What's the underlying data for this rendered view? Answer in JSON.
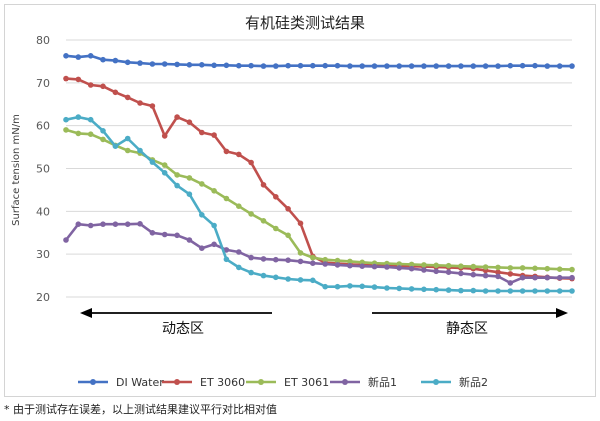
{
  "chart_data": {
    "type": "line",
    "title": "有机硅类测试结果",
    "xlabel": "",
    "ylabel": "Surface tension mN/m",
    "ylim": [
      20,
      80
    ],
    "yticks": [
      20,
      30,
      40,
      50,
      60,
      70,
      80
    ],
    "grid": true,
    "legend_position": "bottom",
    "x": [
      1,
      2,
      3,
      4,
      5,
      6,
      7,
      8,
      9,
      10,
      11,
      12,
      13,
      14,
      15,
      16,
      17,
      18,
      19,
      20,
      21,
      22,
      23,
      24,
      25,
      26,
      27,
      28,
      29,
      30,
      31,
      32,
      33,
      34,
      35,
      36,
      37,
      38,
      39,
      40,
      41,
      42
    ],
    "series": [
      {
        "name": "DI Water",
        "color": "#4472C4",
        "values": [
          76.3,
          76.0,
          76.3,
          75.4,
          75.2,
          74.8,
          74.6,
          74.4,
          74.4,
          74.3,
          74.2,
          74.2,
          74.1,
          74.1,
          74.0,
          74.0,
          73.9,
          73.9,
          74.0,
          74.0,
          74.0,
          74.0,
          74.0,
          73.9,
          73.9,
          73.9,
          73.9,
          73.9,
          73.9,
          73.9,
          73.9,
          73.9,
          73.9,
          73.9,
          73.9,
          73.9,
          74.0,
          74.0,
          74.0,
          73.9,
          73.9,
          73.9
        ]
      },
      {
        "name": "ET 3060",
        "color": "#C0504D",
        "values": [
          71.0,
          70.8,
          69.5,
          69.2,
          67.8,
          66.6,
          65.3,
          64.6,
          57.6,
          62.0,
          60.8,
          58.4,
          57.8,
          54.0,
          53.3,
          51.4,
          46.2,
          43.4,
          40.6,
          37.2,
          29.5,
          28.0,
          27.8,
          27.6,
          27.5,
          27.4,
          27.4,
          27.3,
          27.2,
          27.1,
          27.0,
          26.9,
          26.8,
          26.6,
          26.2,
          25.8,
          25.4,
          25.0,
          24.8,
          24.6,
          24.4,
          24.3
        ]
      },
      {
        "name": "ET 3061",
        "color": "#9BBB59",
        "values": [
          59.0,
          58.2,
          58.0,
          56.8,
          55.4,
          54.2,
          53.6,
          52.0,
          50.8,
          48.5,
          47.8,
          46.4,
          44.8,
          43.0,
          41.2,
          39.4,
          37.8,
          36.0,
          34.4,
          30.3,
          29.2,
          28.7,
          28.5,
          28.3,
          28.1,
          27.9,
          27.8,
          27.7,
          27.6,
          27.5,
          27.4,
          27.3,
          27.2,
          27.1,
          27.0,
          26.9,
          26.8,
          26.8,
          26.7,
          26.6,
          26.5,
          26.4
        ]
      },
      {
        "name": "新品1",
        "color": "#8064A2",
        "values": [
          33.3,
          37.0,
          36.7,
          37.0,
          37.0,
          37.0,
          37.1,
          35.0,
          34.6,
          34.4,
          33.3,
          31.4,
          32.3,
          31.0,
          30.5,
          29.2,
          28.9,
          28.7,
          28.6,
          28.3,
          27.9,
          27.7,
          27.5,
          27.3,
          27.2,
          27.1,
          27.0,
          26.8,
          26.6,
          26.3,
          26.0,
          25.8,
          25.5,
          25.2,
          25.0,
          24.8,
          23.3,
          24.5,
          24.5,
          24.5,
          24.5,
          24.5
        ]
      },
      {
        "name": "新品2",
        "color": "#4BACC6",
        "values": [
          61.4,
          62.0,
          61.4,
          58.8,
          55.2,
          57.0,
          54.2,
          51.5,
          49.0,
          46.0,
          44.0,
          39.2,
          36.7,
          28.8,
          26.9,
          25.7,
          25.0,
          24.6,
          24.2,
          24.0,
          23.9,
          22.4,
          22.4,
          22.6,
          22.5,
          22.3,
          22.1,
          22.0,
          21.9,
          21.8,
          21.7,
          21.6,
          21.5,
          21.5,
          21.4,
          21.4,
          21.4,
          21.4,
          21.4,
          21.4,
          21.4,
          21.4
        ]
      }
    ],
    "annotations": [
      {
        "label": "动态区",
        "arrow": "left"
      },
      {
        "label": "静态区",
        "arrow": "right"
      }
    ]
  },
  "footnote": "* 由于测试存在误差，以上测试结果建议平行对比相对值"
}
